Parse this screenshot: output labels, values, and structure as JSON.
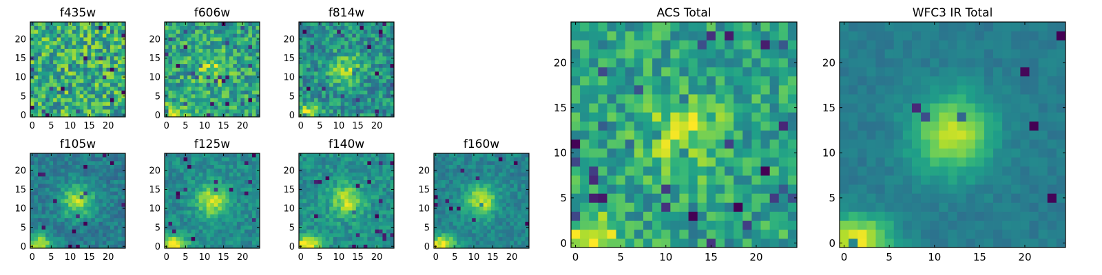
{
  "chart_data": [
    {
      "type": "heatmap",
      "title": "f435w",
      "xticks": [
        "0",
        "5",
        "10",
        "15",
        "20"
      ],
      "yticks": [
        "0",
        "5",
        "10",
        "15",
        "20"
      ],
      "xlim": [
        0,
        25
      ],
      "ylim": [
        0,
        25
      ],
      "grid": false,
      "colormap": "viridis",
      "peak": [
        12,
        12
      ],
      "peak_strength": 0.0,
      "corner_glow": 0.0,
      "noise": 0.55,
      "base": 0.62
    },
    {
      "type": "heatmap",
      "title": "f606w",
      "xticks": [
        "0",
        "5",
        "10",
        "15",
        "20"
      ],
      "yticks": [
        "0",
        "5",
        "10",
        "15",
        "20"
      ],
      "xlim": [
        0,
        25
      ],
      "ylim": [
        0,
        25
      ],
      "grid": false,
      "colormap": "viridis",
      "peak": [
        12,
        12
      ],
      "peak_strength": 0.25,
      "corner_glow": 0.35,
      "noise": 0.45,
      "base": 0.58
    },
    {
      "type": "heatmap",
      "title": "f814w",
      "xticks": [
        "0",
        "5",
        "10",
        "15",
        "20"
      ],
      "yticks": [
        "0",
        "5",
        "10",
        "15",
        "20"
      ],
      "xlim": [
        0,
        25
      ],
      "ylim": [
        0,
        25
      ],
      "grid": false,
      "colormap": "viridis",
      "peak": [
        12,
        12
      ],
      "peak_strength": 0.32,
      "corner_glow": 0.4,
      "noise": 0.4,
      "base": 0.5
    },
    {
      "type": "heatmap",
      "title": "f105w",
      "xticks": [
        "0",
        "5",
        "10",
        "15",
        "20"
      ],
      "yticks": [
        "0",
        "5",
        "10",
        "15",
        "20"
      ],
      "xlim": [
        0,
        25
      ],
      "ylim": [
        0,
        25
      ],
      "grid": false,
      "colormap": "viridis",
      "peak": [
        12,
        12
      ],
      "peak_strength": 0.45,
      "corner_glow": 0.5,
      "noise": 0.22,
      "base": 0.42
    },
    {
      "type": "heatmap",
      "title": "f125w",
      "xticks": [
        "0",
        "5",
        "10",
        "15",
        "20"
      ],
      "yticks": [
        "0",
        "5",
        "10",
        "15",
        "20"
      ],
      "xlim": [
        0,
        25
      ],
      "ylim": [
        0,
        25
      ],
      "grid": false,
      "colormap": "viridis",
      "peak": [
        12,
        12
      ],
      "peak_strength": 0.42,
      "corner_glow": 0.55,
      "noise": 0.22,
      "base": 0.48
    },
    {
      "type": "heatmap",
      "title": "f140w",
      "xticks": [
        "0",
        "5",
        "10",
        "15",
        "20"
      ],
      "yticks": [
        "0",
        "5",
        "10",
        "15",
        "20"
      ],
      "xlim": [
        0,
        25
      ],
      "ylim": [
        0,
        25
      ],
      "grid": false,
      "colormap": "viridis",
      "peak": [
        12,
        12
      ],
      "peak_strength": 0.38,
      "corner_glow": 0.5,
      "noise": 0.25,
      "base": 0.5
    },
    {
      "type": "heatmap",
      "title": "f160w",
      "xticks": [
        "0",
        "5",
        "10",
        "15",
        "20"
      ],
      "yticks": [
        "0",
        "5",
        "10",
        "15",
        "20"
      ],
      "xlim": [
        0,
        25
      ],
      "ylim": [
        0,
        25
      ],
      "grid": false,
      "colormap": "viridis",
      "peak": [
        12,
        12
      ],
      "peak_strength": 0.45,
      "corner_glow": 0.55,
      "noise": 0.2,
      "base": 0.45
    },
    {
      "type": "heatmap",
      "title": "ACS Total",
      "xticks": [
        "0",
        "5",
        "10",
        "15",
        "20"
      ],
      "yticks": [
        "0",
        "5",
        "10",
        "15",
        "20"
      ],
      "xlim": [
        0,
        25
      ],
      "ylim": [
        0,
        25
      ],
      "grid": false,
      "colormap": "viridis",
      "peak": [
        12,
        12
      ],
      "peak_strength": 0.3,
      "corner_glow": 0.4,
      "noise": 0.38,
      "base": 0.58
    },
    {
      "type": "heatmap",
      "title": "WFC3 IR Total",
      "xticks": [
        "0",
        "5",
        "10",
        "15",
        "20"
      ],
      "yticks": [
        "0",
        "5",
        "10",
        "15",
        "20"
      ],
      "xlim": [
        0,
        25
      ],
      "ylim": [
        0,
        25
      ],
      "grid": false,
      "colormap": "viridis",
      "peak": [
        12,
        12
      ],
      "peak_strength": 0.5,
      "corner_glow": 0.55,
      "noise": 0.1,
      "base": 0.42
    }
  ],
  "colors": {
    "viridis": [
      "#440154",
      "#482878",
      "#3e4989",
      "#31688e",
      "#26828e",
      "#1f9e89",
      "#35b779",
      "#6ece58",
      "#b5de2b",
      "#fde725"
    ],
    "axis": "#000000",
    "background": "#ffffff"
  }
}
